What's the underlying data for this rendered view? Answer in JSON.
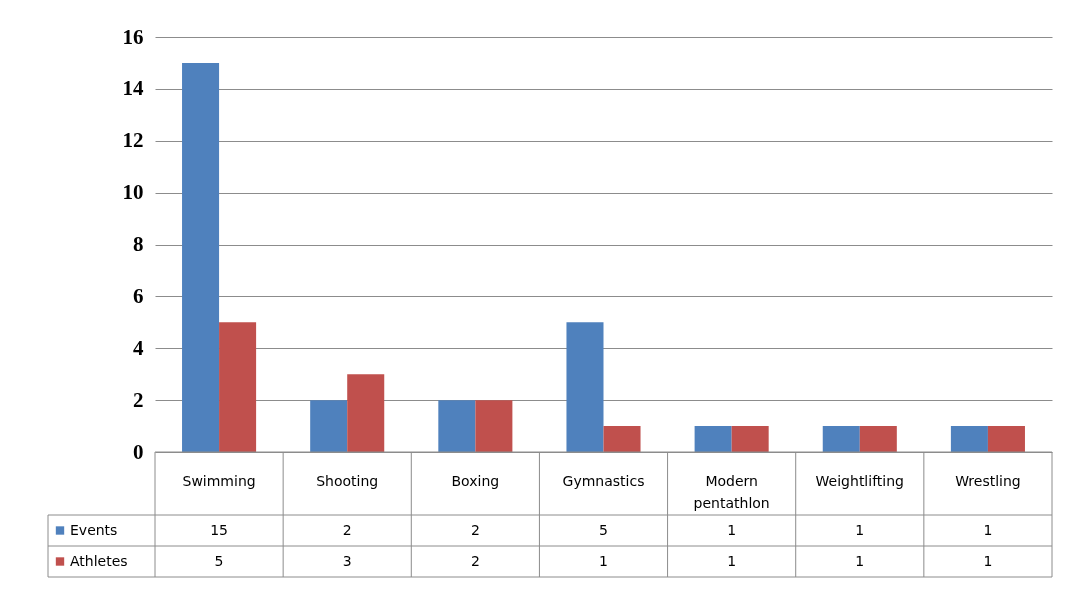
{
  "chart_data": {
    "type": "bar",
    "categories": [
      "Swimming",
      "Shooting",
      "Boxing",
      "Gymnastics",
      "Modern pentathlon",
      "Weightlifting",
      "Wrestling"
    ],
    "series": [
      {
        "name": "Events",
        "color": "#4f81bd",
        "values": [
          15,
          2,
          2,
          5,
          1,
          1,
          1
        ]
      },
      {
        "name": "Athletes",
        "color": "#c0504d",
        "values": [
          5,
          3,
          2,
          1,
          1,
          1,
          1
        ]
      }
    ],
    "ylim": [
      0,
      16
    ],
    "yticks": [
      0,
      2,
      4,
      6,
      8,
      10,
      12,
      14,
      16
    ],
    "grid": "y",
    "legend": "bottom",
    "data_labels": true
  }
}
